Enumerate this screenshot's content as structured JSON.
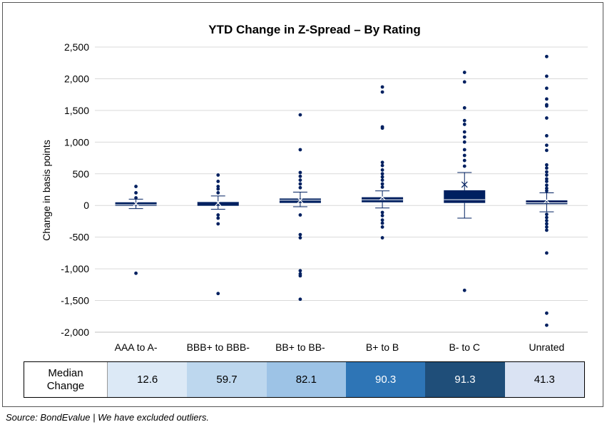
{
  "chart_data": {
    "type": "box",
    "title": "YTD Change in Z-Spread – By Rating",
    "ylabel": "Change in basis points",
    "xlabel": "",
    "ylim": [
      -2000,
      2500
    ],
    "yticks": [
      2500,
      2000,
      1500,
      1000,
      500,
      0,
      -500,
      -1000,
      -1500,
      -2000
    ],
    "ytick_labels": [
      "2,500",
      "2,000",
      "1,500",
      "1,000",
      "500",
      "0",
      "-500",
      "-1,000",
      "-1,500",
      "-2,000"
    ],
    "grid": true,
    "categories": [
      "AAA to A-",
      "BBB+ to BBB-",
      "BB+ to BB-",
      "B+ to B",
      "B- to C",
      "Unrated"
    ],
    "boxes": [
      {
        "q1": -5,
        "median": 12.6,
        "q3": 50,
        "mean": 30,
        "whisker_low": -50,
        "whisker_high": 100,
        "outliers": [
          300,
          200,
          120,
          -1070
        ]
      },
      {
        "q1": -5,
        "median": 59.7,
        "q3": 60,
        "mean": 40,
        "whisker_low": -60,
        "whisker_high": 150,
        "outliers": [
          480,
          380,
          300,
          260,
          200,
          -150,
          -200,
          -290,
          -1390
        ]
      },
      {
        "q1": 40,
        "median": 82.1,
        "q3": 110,
        "mean": 80,
        "whisker_low": -20,
        "whisker_high": 210,
        "outliers": [
          1430,
          880,
          520,
          460,
          400,
          340,
          280,
          -150,
          -460,
          -510,
          -1030,
          -1080,
          -1110,
          -1480
        ]
      },
      {
        "q1": 50,
        "median": 90.3,
        "q3": 130,
        "mean": 130,
        "whisker_low": -40,
        "whisker_high": 230,
        "outliers": [
          1870,
          1790,
          1240,
          1220,
          680,
          630,
          560,
          500,
          450,
          400,
          340,
          290,
          -110,
          -160,
          -230,
          -280,
          -340,
          -510
        ]
      },
      {
        "q1": 40,
        "median": 91.3,
        "q3": 240,
        "mean": 330,
        "whisker_low": -200,
        "whisker_high": 520,
        "outliers": [
          2100,
          1950,
          1540,
          1340,
          1280,
          1160,
          1080,
          1000,
          880,
          790,
          710,
          620,
          -1340
        ]
      },
      {
        "q1": 20,
        "median": 41.3,
        "q3": 80,
        "mean": 80,
        "whisker_low": -100,
        "whisker_high": 200,
        "outliers": [
          2350,
          2040,
          1850,
          1680,
          1590,
          1570,
          1380,
          1100,
          950,
          870,
          640,
          590,
          530,
          480,
          420,
          380,
          320,
          270,
          230,
          -140,
          -190,
          -240,
          -290,
          -340,
          -390,
          -750,
          -1700,
          -1890
        ]
      }
    ]
  },
  "median_table": {
    "label_line1": "Median",
    "label_line2": "Change",
    "cells": [
      {
        "value": "12.6",
        "bg": "#dce9f6",
        "fg": "#000000"
      },
      {
        "value": "59.7",
        "bg": "#bdd7ee",
        "fg": "#000000"
      },
      {
        "value": "82.1",
        "bg": "#9dc3e6",
        "fg": "#000000"
      },
      {
        "value": "90.3",
        "bg": "#2e75b6",
        "fg": "#ffffff"
      },
      {
        "value": "91.3",
        "bg": "#1f4e79",
        "fg": "#ffffff"
      },
      {
        "value": "41.3",
        "bg": "#dae3f3",
        "fg": "#000000"
      }
    ]
  },
  "source": "Source: BondEvalue | We have excluded outliers.",
  "colors": {
    "box": "#002060",
    "grid": "#d9d9d9",
    "axis": "#bfbfbf"
  }
}
